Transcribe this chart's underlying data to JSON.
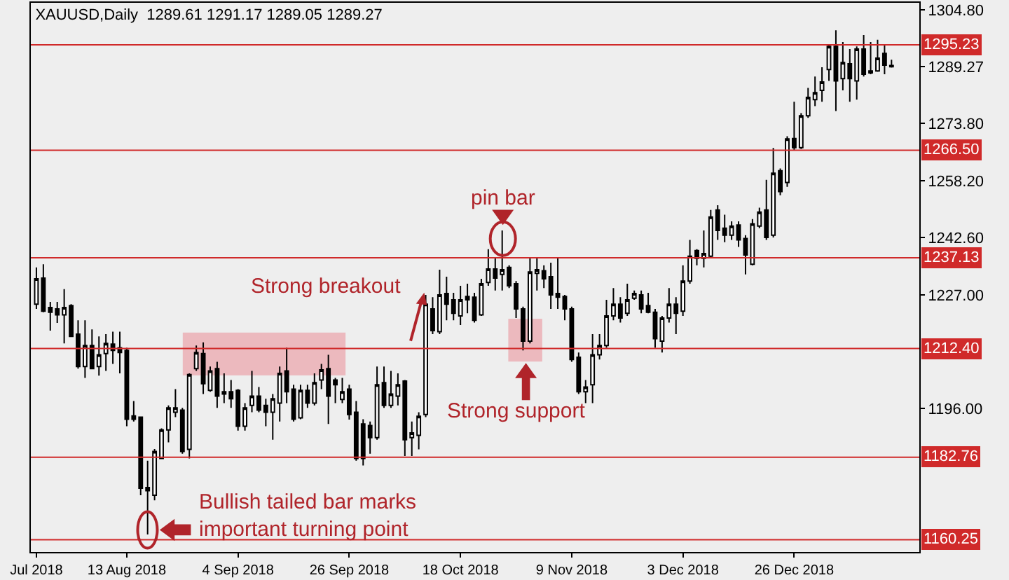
{
  "chart_data": {
    "type": "candlestick",
    "title": "XAUUSD,Daily  1289.61 1291.17 1289.05 1289.27",
    "categories": [
      "Jul 2018",
      null,
      null,
      null,
      null,
      null,
      null,
      null,
      null,
      null,
      null,
      null,
      null,
      "13 Aug 2018",
      null,
      null,
      null,
      null,
      null,
      null,
      null,
      null,
      null,
      null,
      null,
      null,
      null,
      null,
      null,
      "4 Sep 2018",
      null,
      null,
      null,
      null,
      null,
      null,
      null,
      null,
      null,
      null,
      null,
      null,
      null,
      null,
      null,
      "26 Sep 2018",
      null,
      null,
      null,
      null,
      null,
      null,
      null,
      null,
      null,
      null,
      null,
      null,
      null,
      null,
      null,
      "18 Oct 2018",
      null,
      null,
      null,
      null,
      null,
      null,
      null,
      null,
      null,
      null,
      null,
      null,
      null,
      null,
      null,
      "9 Nov 2018",
      null,
      null,
      null,
      null,
      null,
      null,
      null,
      null,
      null,
      null,
      null,
      null,
      null,
      null,
      null,
      "3 Dec 2018",
      null,
      null,
      null,
      null,
      null,
      null,
      null,
      null,
      null,
      null,
      null,
      null,
      null,
      null,
      null,
      "26 Dec 2018",
      null,
      null,
      null,
      null,
      null,
      null,
      null,
      null,
      null,
      null,
      null,
      null,
      null,
      null
    ],
    "ohlc": [
      [
        1224.5,
        1234.5,
        1223.2,
        1231.4
      ],
      [
        1231.6,
        1235.4,
        1222.3,
        1222.6
      ],
      [
        1223.6,
        1225.1,
        1217.3,
        1222.3
      ],
      [
        1223.2,
        1225.1,
        1219.4,
        1221.6
      ],
      [
        1221.6,
        1228.6,
        1213.8,
        1223.6
      ],
      [
        1224.1,
        1224.5,
        1215.7,
        1215.7
      ],
      [
        1216.3,
        1220.1,
        1206.9,
        1207.5
      ],
      [
        1207.5,
        1220.1,
        1204.4,
        1213.2
      ],
      [
        1213.2,
        1217.6,
        1206.9,
        1206.9
      ],
      [
        1207.5,
        1215.7,
        1205.0,
        1210.7
      ],
      [
        1211.0,
        1216.3,
        1206.3,
        1213.8
      ],
      [
        1213.6,
        1217.0,
        1208.2,
        1211.9
      ],
      [
        1212.6,
        1217.0,
        1205.6,
        1211.3
      ],
      [
        1211.9,
        1212.6,
        1191.2,
        1193.1
      ],
      [
        1194.0,
        1198.1,
        1192.5,
        1193.1
      ],
      [
        1193.7,
        1193.7,
        1172.4,
        1174.3
      ],
      [
        1174.5,
        1181.8,
        1161.7,
        1173.6
      ],
      [
        1172.4,
        1185.0,
        1171.0,
        1184.3
      ],
      [
        1182.4,
        1190.6,
        1182.4,
        1190.2
      ],
      [
        1190.2,
        1196.9,
        1186.8,
        1196.2
      ],
      [
        1195.0,
        1201.3,
        1193.7,
        1196.2
      ],
      [
        1195.6,
        1196.2,
        1183.7,
        1184.3
      ],
      [
        1184.9,
        1205.6,
        1182.4,
        1205.3
      ],
      [
        1206.9,
        1213.2,
        1206.3,
        1211.3
      ],
      [
        1211.0,
        1214.1,
        1200.0,
        1202.8
      ],
      [
        1201.0,
        1207.5,
        1200.6,
        1206.3
      ],
      [
        1206.9,
        1208.8,
        1196.2,
        1199.4
      ],
      [
        1200.6,
        1205.6,
        1197.5,
        1200.0
      ],
      [
        1200.6,
        1203.8,
        1196.2,
        1198.7
      ],
      [
        1201.0,
        1201.3,
        1190.0,
        1191.2
      ],
      [
        1191.2,
        1197.5,
        1190.0,
        1196.2
      ],
      [
        1196.9,
        1206.3,
        1195.0,
        1199.4
      ],
      [
        1199.4,
        1201.9,
        1195.0,
        1195.6
      ],
      [
        1196.9,
        1198.7,
        1191.2,
        1195.0
      ],
      [
        1195.0,
        1200.0,
        1187.5,
        1198.7
      ],
      [
        1197.5,
        1207.5,
        1192.5,
        1205.6
      ],
      [
        1206.3,
        1212.6,
        1197.5,
        1200.6
      ],
      [
        1201.3,
        1202.5,
        1192.5,
        1193.1
      ],
      [
        1193.5,
        1202.5,
        1193.1,
        1201.0
      ],
      [
        1201.0,
        1202.5,
        1196.2,
        1197.5
      ],
      [
        1197.5,
        1205.6,
        1196.9,
        1203.1
      ],
      [
        1203.8,
        1208.2,
        1201.3,
        1206.6
      ],
      [
        1206.9,
        1210.7,
        1191.8,
        1199.4
      ],
      [
        1203.8,
        1204.4,
        1197.5,
        1202.5
      ],
      [
        1198.5,
        1204.4,
        1197.5,
        1200.6
      ],
      [
        1201.3,
        1202.5,
        1193.0,
        1194.4
      ],
      [
        1195.0,
        1198.1,
        1181.8,
        1182.4
      ],
      [
        1191.8,
        1193.1,
        1180.5,
        1182.4
      ],
      [
        1191.4,
        1192.5,
        1183.7,
        1188.1
      ],
      [
        1188.1,
        1207.5,
        1187.5,
        1202.5
      ],
      [
        1203.1,
        1207.5,
        1196.2,
        1196.9
      ],
      [
        1196.9,
        1206.3,
        1196.2,
        1200.0
      ],
      [
        1199.4,
        1205.6,
        1196.9,
        1202.5
      ],
      [
        1203.5,
        1203.8,
        1183.1,
        1187.5
      ],
      [
        1188.1,
        1192.5,
        1183.1,
        1189.4
      ],
      [
        1188.7,
        1195.0,
        1184.9,
        1193.9
      ],
      [
        1194.4,
        1227.0,
        1193.7,
        1224.5
      ],
      [
        1223.2,
        1226.4,
        1216.3,
        1217.3
      ],
      [
        1217.0,
        1233.9,
        1216.3,
        1227.0
      ],
      [
        1227.4,
        1232.0,
        1220.1,
        1224.5
      ],
      [
        1225.7,
        1227.6,
        1220.1,
        1222.0
      ],
      [
        1221.3,
        1229.5,
        1218.8,
        1225.7
      ],
      [
        1226.6,
        1230.1,
        1222.0,
        1225.7
      ],
      [
        1226.4,
        1227.6,
        1219.5,
        1220.1
      ],
      [
        1221.6,
        1231.4,
        1221.3,
        1230.1
      ],
      [
        1230.4,
        1239.5,
        1229.5,
        1234.1
      ],
      [
        1234.1,
        1237.0,
        1228.2,
        1231.6
      ],
      [
        1232.6,
        1244.6,
        1228.2,
        1233.9
      ],
      [
        1234.5,
        1235.1,
        1228.9,
        1229.5
      ],
      [
        1230.1,
        1230.8,
        1220.7,
        1223.2
      ],
      [
        1223.2,
        1223.8,
        1211.9,
        1214.4
      ],
      [
        1214.4,
        1237.0,
        1213.8,
        1233.3
      ],
      [
        1232.9,
        1237.0,
        1228.2,
        1233.9
      ],
      [
        1233.6,
        1235.1,
        1228.9,
        1231.4
      ],
      [
        1232.0,
        1235.8,
        1223.2,
        1227.0
      ],
      [
        1227.4,
        1237.0,
        1223.2,
        1226.4
      ],
      [
        1226.6,
        1227.0,
        1220.1,
        1223.2
      ],
      [
        1223.2,
        1223.8,
        1208.8,
        1209.4
      ],
      [
        1210.0,
        1211.3,
        1200.0,
        1200.6
      ],
      [
        1200.6,
        1203.8,
        1197.5,
        1201.9
      ],
      [
        1202.5,
        1216.3,
        1197.5,
        1210.7
      ],
      [
        1210.7,
        1216.3,
        1209.4,
        1213.2
      ],
      [
        1213.2,
        1225.7,
        1212.6,
        1221.3
      ],
      [
        1221.3,
        1228.9,
        1220.1,
        1224.5
      ],
      [
        1224.5,
        1226.4,
        1219.5,
        1220.7
      ],
      [
        1222.0,
        1230.1,
        1221.3,
        1225.7
      ],
      [
        1226.1,
        1228.2,
        1225.7,
        1227.4
      ],
      [
        1227.0,
        1228.2,
        1222.0,
        1223.2
      ],
      [
        1224.1,
        1227.6,
        1222.0,
        1222.3
      ],
      [
        1222.3,
        1223.2,
        1212.6,
        1215.1
      ],
      [
        1214.4,
        1221.3,
        1211.3,
        1220.7
      ],
      [
        1220.7,
        1228.9,
        1219.5,
        1224.5
      ],
      [
        1224.5,
        1226.4,
        1216.3,
        1222.0
      ],
      [
        1222.6,
        1235.1,
        1221.3,
        1230.8
      ],
      [
        1230.8,
        1242.0,
        1230.1,
        1237.6
      ],
      [
        1239.1,
        1239.5,
        1235.1,
        1237.0
      ],
      [
        1237.0,
        1244.6,
        1234.5,
        1238.3
      ],
      [
        1237.6,
        1250.2,
        1237.0,
        1248.3
      ],
      [
        1250.2,
        1251.5,
        1242.0,
        1244.6
      ],
      [
        1245.2,
        1248.9,
        1241.4,
        1243.3
      ],
      [
        1243.3,
        1247.1,
        1242.0,
        1245.8
      ],
      [
        1246.1,
        1247.1,
        1240.1,
        1242.0
      ],
      [
        1242.4,
        1243.3,
        1232.6,
        1237.9
      ],
      [
        1235.4,
        1247.7,
        1235.1,
        1246.4
      ],
      [
        1245.8,
        1250.8,
        1245.2,
        1249.6
      ],
      [
        1250.2,
        1258.4,
        1242.0,
        1242.7
      ],
      [
        1243.3,
        1267.1,
        1242.7,
        1260.2
      ],
      [
        1260.9,
        1261.5,
        1254.2,
        1255.2
      ],
      [
        1257.7,
        1270.3,
        1256.5,
        1269.6
      ],
      [
        1269.7,
        1279.7,
        1266.5,
        1267.2
      ],
      [
        1267.2,
        1276.6,
        1266.8,
        1275.9
      ],
      [
        1275.9,
        1283.5,
        1275.3,
        1280.9
      ],
      [
        1280.3,
        1286.6,
        1278.5,
        1282.2
      ],
      [
        1282.8,
        1289.1,
        1279.7,
        1285.1
      ],
      [
        1288.5,
        1295.4,
        1285.4,
        1294.8
      ],
      [
        1294.8,
        1299.2,
        1277.2,
        1285.4
      ],
      [
        1286.0,
        1296.0,
        1282.8,
        1290.4
      ],
      [
        1290.1,
        1294.1,
        1279.7,
        1286.0
      ],
      [
        1285.4,
        1294.8,
        1280.3,
        1294.1
      ],
      [
        1294.1,
        1297.9,
        1286.6,
        1287.2
      ],
      [
        1288.1,
        1296.0,
        1287.2,
        1287.6
      ],
      [
        1288.1,
        1296.6,
        1287.9,
        1291.6
      ],
      [
        1292.9,
        1295.4,
        1287.2,
        1289.7
      ],
      [
        1289.61,
        1291.17,
        1289.05,
        1289.27
      ]
    ],
    "ylim": [
      1156.9,
      1306.7
    ],
    "yticks": [
      {
        "value": 1304.8,
        "label": "1304.80"
      },
      {
        "value": 1289.27,
        "label": "1289.27"
      },
      {
        "value": 1273.8,
        "label": "1273.80"
      },
      {
        "value": 1258.2,
        "label": "1258.20"
      },
      {
        "value": 1242.6,
        "label": "1242.60"
      },
      {
        "value": 1227,
        "label": "1227.00"
      },
      {
        "value": 1196,
        "label": "1196.00"
      }
    ],
    "ref_lines": [
      {
        "axis": "y",
        "value": 1295.23,
        "label": "1295.23",
        "color": "#d02a2a"
      },
      {
        "axis": "y",
        "value": 1266.5,
        "label": "1266.50",
        "color": "#d02a2a"
      },
      {
        "axis": "y",
        "value": 1237.13,
        "label": "1237.13",
        "color": "#d02a2a"
      },
      {
        "axis": "y",
        "value": 1212.4,
        "label": "1212.40",
        "color": "#d02a2a"
      },
      {
        "axis": "y",
        "value": 1182.76,
        "label": "1182.76",
        "color": "#d02a2a"
      },
      {
        "axis": "y",
        "value": 1160.25,
        "label": "1160.25",
        "color": "#d02a2a"
      }
    ],
    "annotations": [
      "pin bar",
      "Strong breakout",
      "Strong support",
      "Bullish tailed bar marks\nimportant turning point"
    ]
  }
}
